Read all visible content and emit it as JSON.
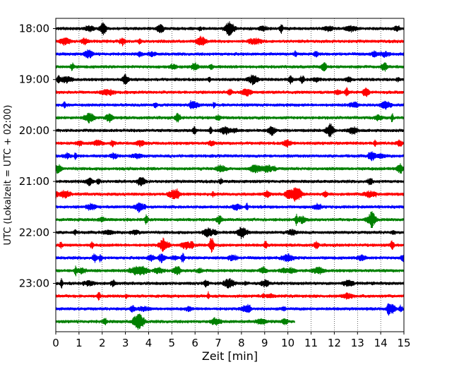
{
  "chart_data": {
    "type": "line",
    "title": "",
    "xlabel": "Zeit  [min]",
    "ylabel": "UTC (Lokalzeit = UTC + 02:00)",
    "xlim": [
      0,
      15
    ],
    "x_ticks": [
      "0",
      "1",
      "2",
      "3",
      "4",
      "5",
      "6",
      "7",
      "8",
      "9",
      "10",
      "11",
      "12",
      "13",
      "14",
      "15"
    ],
    "y_tick_labels": [
      "18:00",
      "19:00",
      "20:00",
      "21:00",
      "22:00",
      "23:00"
    ],
    "grid": {
      "vertical": true,
      "style": "dotted",
      "horizontal": false
    },
    "trace_interval_minutes": 15,
    "color_cycle": [
      "#000000",
      "#ff0000",
      "#0000ff",
      "#008000"
    ],
    "traces": [
      {
        "start": "18:00",
        "end_minute": 15
      },
      {
        "start": "18:15",
        "end_minute": 15
      },
      {
        "start": "18:30",
        "end_minute": 15
      },
      {
        "start": "18:45",
        "end_minute": 15
      },
      {
        "start": "19:00",
        "end_minute": 15
      },
      {
        "start": "19:15",
        "end_minute": 15
      },
      {
        "start": "19:30",
        "end_minute": 15
      },
      {
        "start": "19:45",
        "end_minute": 15
      },
      {
        "start": "20:00",
        "end_minute": 15
      },
      {
        "start": "20:15",
        "end_minute": 15
      },
      {
        "start": "20:30",
        "end_minute": 15
      },
      {
        "start": "20:45",
        "end_minute": 15
      },
      {
        "start": "21:00",
        "end_minute": 15
      },
      {
        "start": "21:15",
        "end_minute": 15
      },
      {
        "start": "21:30",
        "end_minute": 15
      },
      {
        "start": "21:45",
        "end_minute": 15
      },
      {
        "start": "22:00",
        "end_minute": 15
      },
      {
        "start": "22:15",
        "end_minute": 15
      },
      {
        "start": "22:30",
        "end_minute": 15
      },
      {
        "start": "22:45",
        "end_minute": 15
      },
      {
        "start": "23:00",
        "end_minute": 15
      },
      {
        "start": "23:15",
        "end_minute": 15
      },
      {
        "start": "23:30",
        "end_minute": 15
      },
      {
        "start": "23:45",
        "end_minute": 10.3
      }
    ]
  }
}
